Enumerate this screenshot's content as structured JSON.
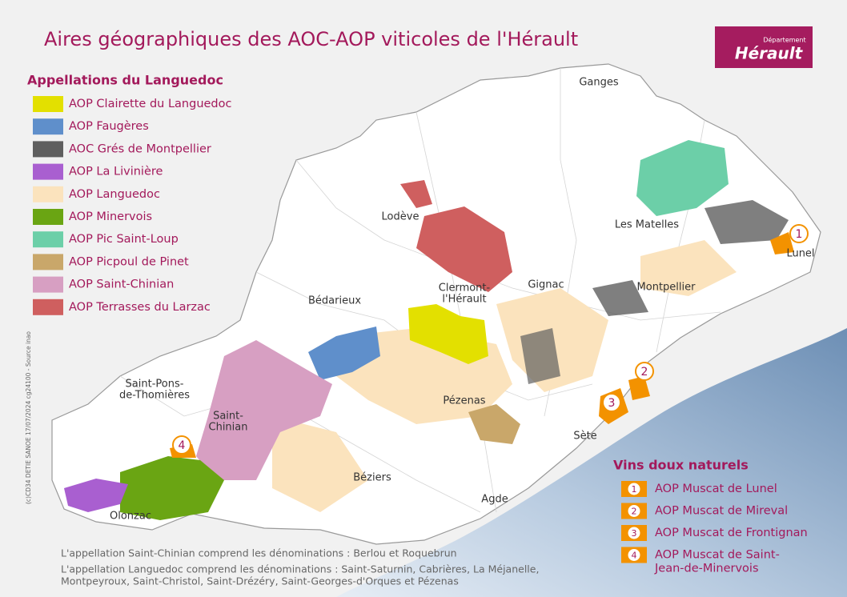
{
  "title": "Aires géographiques des AOC-AOP viticoles de l'Hérault",
  "logo": {
    "top": "Département",
    "main": "Hérault"
  },
  "legend": {
    "title": "Appellations du Languedoc",
    "items": [
      {
        "label": "AOP Clairette du Languedoc",
        "color": "#e3e000"
      },
      {
        "label": "AOP Faugères",
        "color": "#5f8fcb"
      },
      {
        "label": "AOC Grés de Montpellier",
        "color": "#5f5f5f"
      },
      {
        "label": "AOP La Livinière",
        "color": "#a95fd0"
      },
      {
        "label": "AOP Languedoc",
        "color": "#fbe3bd"
      },
      {
        "label": "AOP Minervois",
        "color": "#6aa513"
      },
      {
        "label": "AOP Pic Saint-Loup",
        "color": "#6ccfa8"
      },
      {
        "label": "AOP Picpoul de Pinet",
        "color": "#c9a76a"
      },
      {
        "label": "AOP Saint-Chinian",
        "color": "#d79fc2"
      },
      {
        "label": "AOP Terrasses du Larzac",
        "color": "#cf5f5f"
      }
    ]
  },
  "places": [
    {
      "lines": [
        "Ganges"
      ]
    },
    {
      "lines": [
        "Lodève"
      ]
    },
    {
      "lines": [
        "Les Matelles"
      ]
    },
    {
      "lines": [
        "Lunel"
      ]
    },
    {
      "lines": [
        "Bédarieux"
      ]
    },
    {
      "lines": [
        "Clermont-",
        "l'Hérault"
      ]
    },
    {
      "lines": [
        "Gignac"
      ]
    },
    {
      "lines": [
        "Montpellier"
      ]
    },
    {
      "lines": [
        "Saint-Pons-",
        "de-Thomières"
      ]
    },
    {
      "lines": [
        "Saint-",
        "Chinian"
      ]
    },
    {
      "lines": [
        "Pézenas"
      ]
    },
    {
      "lines": [
        "Sète"
      ]
    },
    {
      "lines": [
        "Béziers"
      ]
    },
    {
      "lines": [
        "Agde"
      ]
    },
    {
      "lines": [
        "Olonzac"
      ]
    }
  ],
  "markers": [
    "1",
    "2",
    "3",
    "4"
  ],
  "vdn": {
    "title": "Vins doux naturels",
    "color": "#f39200",
    "items": [
      {
        "number": "1",
        "lines": [
          "AOP Muscat de Lunel"
        ]
      },
      {
        "number": "2",
        "lines": [
          "AOP Muscat de Mireval"
        ]
      },
      {
        "number": "3",
        "lines": [
          "AOP Muscat de Frontignan"
        ]
      },
      {
        "number": "4",
        "lines": [
          "AOP Muscat de Saint-",
          "Jean-de-Minervois"
        ]
      }
    ]
  },
  "notes": [
    "L'appellation Saint-Chinian comprend les dénominations : Berlou et Roquebrun",
    "L'appellation Languedoc comprend les dénominations : Saint-Saturnin, Cabrières, La Méjanelle,",
    "Montpeyroux, Saint-Christol, Saint-Drézéry, Saint-Georges-d'Orques et Pézenas"
  ],
  "credit": "(c)CD34 DETIE SANOE 17/07/2024 cg24100 - Source inao"
}
